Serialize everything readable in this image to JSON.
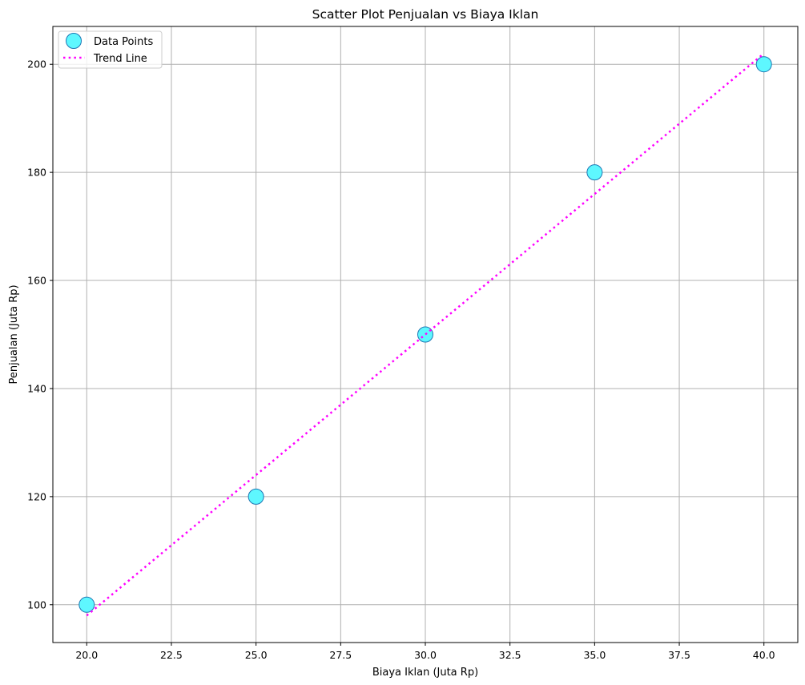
{
  "chart_data": {
    "type": "scatter",
    "title": "Scatter Plot Penjualan vs Biaya Iklan",
    "xlabel": "Biaya Iklan (Juta Rp)",
    "ylabel": "Penjualan (Juta Rp)",
    "xlim": [
      19.0,
      41.0
    ],
    "ylim": [
      93,
      207
    ],
    "xticks": [
      20.0,
      22.5,
      25.0,
      27.5,
      30.0,
      32.5,
      35.0,
      37.5,
      40.0
    ],
    "xtick_labels": [
      "20.0",
      "22.5",
      "25.0",
      "27.5",
      "30.0",
      "32.5",
      "35.0",
      "37.5",
      "40.0"
    ],
    "yticks": [
      100,
      120,
      140,
      160,
      180,
      200
    ],
    "ytick_labels": [
      "100",
      "120",
      "140",
      "160",
      "180",
      "200"
    ],
    "grid": true,
    "legend_position": "top-left",
    "series": [
      {
        "name": "Data Points",
        "kind": "scatter",
        "color": "#5ef7ff",
        "edge_color": "#1f77b4",
        "x": [
          20,
          25,
          30,
          35,
          40
        ],
        "y": [
          100,
          120,
          150,
          180,
          200
        ]
      },
      {
        "name": "Trend Line",
        "kind": "line",
        "style": "dotted",
        "color": "#ff00ff",
        "x": [
          20,
          40
        ],
        "y": [
          98,
          202
        ]
      }
    ]
  }
}
